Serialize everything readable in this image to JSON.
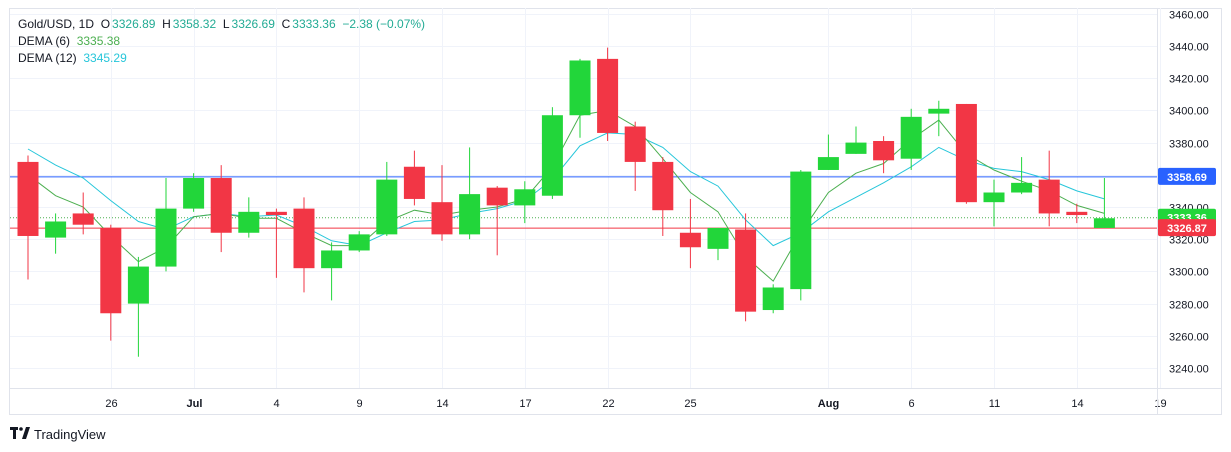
{
  "legend": {
    "symbol": "Gold/USD, 1D",
    "open_label": "O",
    "open": "3326.89",
    "high_label": "H",
    "high": "3358.32",
    "low_label": "L",
    "low": "3326.69",
    "close_label": "C",
    "close": "3333.36",
    "change": "−2.38 (−0.07%)",
    "dema6_label": "DEMA (6)",
    "dema6_value": "3335.38",
    "dema12_label": "DEMA (12)",
    "dema12_value": "3345.29"
  },
  "brand": {
    "name": "TradingView"
  },
  "colors": {
    "up": "#22d63a",
    "down": "#f23645",
    "dema6": "#4caf50",
    "dema12": "#26c6da",
    "blue_line": "#2962ff",
    "red_line": "#f23645",
    "green_line": "#4caf50"
  },
  "chart_data": {
    "type": "candlestick",
    "y_ticks": [
      3240,
      3260,
      3280,
      3300,
      3320,
      3340,
      3360,
      3380,
      3400,
      3420,
      3440,
      3460
    ],
    "y_tick_labels": [
      "3240.00",
      "3260.00",
      "3280.00",
      "3300.00",
      "3320.00",
      "3340.00",
      "3360.00",
      "3380.00",
      "3400.00",
      "3420.00",
      "3440.00",
      "3460.00"
    ],
    "ylim": [
      3224,
      3464
    ],
    "x_ticks": [
      {
        "index": 3,
        "label": "26"
      },
      {
        "index": 6,
        "label": "Jul"
      },
      {
        "index": 9,
        "label": "4"
      },
      {
        "index": 12,
        "label": "9"
      },
      {
        "index": 15,
        "label": "14"
      },
      {
        "index": 18,
        "label": "17"
      },
      {
        "index": 21,
        "label": "22"
      },
      {
        "index": 24,
        "label": "25"
      },
      {
        "index": 29,
        "label": "Aug"
      },
      {
        "index": 32,
        "label": "6"
      },
      {
        "index": 35,
        "label": "11"
      },
      {
        "index": 38,
        "label": "14"
      },
      {
        "index": 41,
        "label": "19"
      }
    ],
    "candles": [
      {
        "o": 3368,
        "h": 3372,
        "l": 3295,
        "c": 3322
      },
      {
        "o": 3321,
        "h": 3336,
        "l": 3311,
        "c": 3331
      },
      {
        "o": 3336,
        "h": 3349,
        "l": 3323,
        "c": 3329
      },
      {
        "o": 3327,
        "h": 3329,
        "l": 3257,
        "c": 3274
      },
      {
        "o": 3280,
        "h": 3309,
        "l": 3247,
        "c": 3303
      },
      {
        "o": 3303,
        "h": 3358,
        "l": 3300,
        "c": 3339
      },
      {
        "o": 3339,
        "h": 3361,
        "l": 3337,
        "c": 3358
      },
      {
        "o": 3358,
        "h": 3366,
        "l": 3312,
        "c": 3324
      },
      {
        "o": 3324,
        "h": 3346,
        "l": 3321,
        "c": 3337
      },
      {
        "o": 3337,
        "h": 3339,
        "l": 3296,
        "c": 3335
      },
      {
        "o": 3339,
        "h": 3346,
        "l": 3287,
        "c": 3302
      },
      {
        "o": 3302,
        "h": 3318,
        "l": 3282,
        "c": 3313
      },
      {
        "o": 3313,
        "h": 3325,
        "l": 3312,
        "c": 3323
      },
      {
        "o": 3323,
        "h": 3368,
        "l": 3322,
        "c": 3357
      },
      {
        "o": 3365,
        "h": 3375,
        "l": 3341,
        "c": 3345
      },
      {
        "o": 3343,
        "h": 3366,
        "l": 3319,
        "c": 3323
      },
      {
        "o": 3323,
        "h": 3377,
        "l": 3320,
        "c": 3348
      },
      {
        "o": 3352,
        "h": 3353,
        "l": 3310,
        "c": 3341
      },
      {
        "o": 3341,
        "h": 3356,
        "l": 3330,
        "c": 3351
      },
      {
        "o": 3347,
        "h": 3402,
        "l": 3345,
        "c": 3397
      },
      {
        "o": 3397,
        "h": 3432,
        "l": 3383,
        "c": 3431
      },
      {
        "o": 3432,
        "h": 3439,
        "l": 3381,
        "c": 3386
      },
      {
        "o": 3390,
        "h": 3393,
        "l": 3350,
        "c": 3368
      },
      {
        "o": 3368,
        "h": 3371,
        "l": 3322,
        "c": 3338
      },
      {
        "o": 3324,
        "h": 3345,
        "l": 3302,
        "c": 3315
      },
      {
        "o": 3314,
        "h": 3327,
        "l": 3307,
        "c": 3327
      },
      {
        "o": 3326,
        "h": 3336,
        "l": 3269,
        "c": 3275
      },
      {
        "o": 3276,
        "h": 3292,
        "l": 3274,
        "c": 3290
      },
      {
        "o": 3289,
        "h": 3363,
        "l": 3282,
        "c": 3362
      },
      {
        "o": 3363,
        "h": 3385,
        "l": 3363,
        "c": 3371
      },
      {
        "o": 3373,
        "h": 3390,
        "l": 3373,
        "c": 3380
      },
      {
        "o": 3381,
        "h": 3384,
        "l": 3361,
        "c": 3369
      },
      {
        "o": 3370,
        "h": 3401,
        "l": 3363,
        "c": 3396
      },
      {
        "o": 3398,
        "h": 3406,
        "l": 3384,
        "c": 3401
      },
      {
        "o": 3404,
        "h": 3404,
        "l": 3342,
        "c": 3343
      },
      {
        "o": 3343,
        "h": 3357,
        "l": 3328,
        "c": 3349
      },
      {
        "o": 3349,
        "h": 3371,
        "l": 3348,
        "c": 3355
      },
      {
        "o": 3357,
        "h": 3375,
        "l": 3328,
        "c": 3336
      },
      {
        "o": 3337,
        "h": 3342,
        "l": 3330,
        "c": 3335
      },
      {
        "o": 3327,
        "h": 3358,
        "l": 3327,
        "c": 3333
      }
    ],
    "dema6": [
      3360,
      3347,
      3340,
      3322,
      3306,
      3315,
      3334,
      3336,
      3333,
      3333,
      3324,
      3316,
      3316,
      3331,
      3338,
      3335,
      3338,
      3340,
      3345,
      3365,
      3397,
      3400,
      3390,
      3370,
      3349,
      3337,
      3309,
      3294,
      3324,
      3349,
      3361,
      3367,
      3382,
      3394,
      3373,
      3363,
      3356,
      3350,
      3341,
      3336
    ],
    "dema12": [
      3376,
      3366,
      3358,
      3344,
      3331,
      3326,
      3334,
      3336,
      3334,
      3335,
      3328,
      3319,
      3316,
      3324,
      3331,
      3332,
      3336,
      3339,
      3344,
      3357,
      3378,
      3386,
      3385,
      3377,
      3362,
      3353,
      3332,
      3316,
      3324,
      3337,
      3346,
      3355,
      3365,
      3377,
      3369,
      3364,
      3362,
      3357,
      3350,
      3345
    ],
    "lines": {
      "blue_price": 3358.69,
      "blue_label": "3358.69",
      "green_price": 3333.36,
      "green_label": "3333.36",
      "red_price": 3326.87,
      "red_label": "3326.87"
    }
  }
}
